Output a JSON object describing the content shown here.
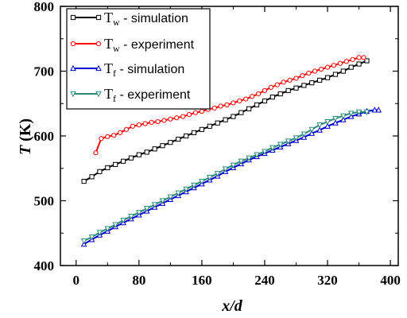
{
  "chart_data": {
    "type": "line",
    "xlabel": "x/d",
    "ylabel_main": "T",
    "ylabel_unit": " (K)",
    "xlim": [
      -20,
      410
    ],
    "ylim": [
      400,
      800
    ],
    "xticks": [
      0,
      80,
      160,
      240,
      320,
      400
    ],
    "yticks": [
      400,
      500,
      600,
      700,
      800
    ],
    "xtick_labels": [
      "0",
      "80",
      "160",
      "240",
      "320",
      "400"
    ],
    "ytick_labels": [
      "400",
      "500",
      "600",
      "700",
      "800"
    ],
    "grid": false,
    "legend_position": "top-left",
    "series": [
      {
        "name_main": "T",
        "name_sub": "w",
        "name_rest": " - simulation",
        "color": "#000000",
        "marker": "square",
        "x": [
          10,
          20,
          30,
          40,
          50,
          60,
          70,
          80,
          90,
          100,
          110,
          120,
          130,
          140,
          150,
          160,
          170,
          180,
          190,
          200,
          210,
          220,
          230,
          240,
          250,
          260,
          270,
          280,
          290,
          300,
          310,
          320,
          330,
          340,
          350,
          360,
          370
        ],
        "y": [
          530,
          537,
          545,
          551,
          556,
          561,
          566,
          571,
          575,
          580,
          585,
          590,
          595,
          600,
          605,
          610,
          615,
          620,
          625,
          630,
          636,
          642,
          648,
          654,
          660,
          665,
          670,
          674,
          678,
          682,
          686,
          690,
          695,
          700,
          706,
          711,
          716
        ]
      },
      {
        "name_main": "T",
        "name_sub": "w",
        "name_rest": " - experiment",
        "color": "#ff0000",
        "marker": "circle",
        "x": [
          25,
          32,
          40,
          48,
          56,
          64,
          72,
          80,
          88,
          96,
          104,
          112,
          120,
          128,
          136,
          144,
          152,
          160,
          168,
          176,
          184,
          192,
          200,
          208,
          216,
          224,
          232,
          240,
          248,
          256,
          264,
          272,
          280,
          288,
          296,
          304,
          312,
          320,
          328,
          336,
          344,
          352,
          360,
          366
        ],
        "y": [
          574,
          596,
          599,
          601,
          605,
          610,
          615,
          617,
          619,
          621,
          622,
          624,
          626,
          628,
          630,
          633,
          636,
          638,
          641,
          643,
          646,
          648,
          651,
          654,
          657,
          661,
          665,
          670,
          675,
          679,
          683,
          686,
          689,
          693,
          697,
          700,
          703,
          706,
          709,
          712,
          715,
          718,
          721,
          721
        ]
      },
      {
        "name_main": "T",
        "name_sub": "f",
        "name_rest": " - simulation",
        "color": "#0000cc",
        "marker": "triangle-up",
        "x": [
          10,
          20,
          30,
          40,
          50,
          60,
          70,
          80,
          90,
          100,
          110,
          120,
          130,
          140,
          150,
          160,
          170,
          180,
          190,
          200,
          210,
          220,
          230,
          240,
          250,
          260,
          270,
          280,
          290,
          300,
          310,
          320,
          330,
          340,
          350,
          360,
          370,
          380,
          385
        ],
        "y": [
          433,
          440,
          447,
          453,
          460,
          466,
          472,
          478,
          484,
          490,
          496,
          502,
          508,
          514,
          520,
          526,
          532,
          538,
          545,
          551,
          557,
          563,
          568,
          573,
          578,
          583,
          588,
          593,
          598,
          604,
          609,
          615,
          620,
          625,
          630,
          634,
          638,
          640,
          640
        ]
      },
      {
        "name_main": "T",
        "name_sub": "f",
        "name_rest": " - experiment",
        "color": "#2e8b7a",
        "marker": "triangle-down",
        "x": [
          10,
          20,
          30,
          40,
          50,
          60,
          70,
          80,
          90,
          100,
          110,
          120,
          130,
          140,
          150,
          160,
          170,
          180,
          190,
          200,
          210,
          220,
          230,
          240,
          250,
          260,
          270,
          280,
          290,
          300,
          310,
          320,
          330,
          340,
          350,
          360,
          370
        ],
        "y": [
          438,
          444,
          451,
          457,
          463,
          470,
          476,
          482,
          488,
          494,
          500,
          506,
          512,
          518,
          524,
          530,
          536,
          542,
          549,
          555,
          561,
          566,
          571,
          576,
          582,
          587,
          592,
          597,
          603,
          610,
          617,
          622,
          627,
          631,
          635,
          637,
          637
        ]
      }
    ]
  }
}
